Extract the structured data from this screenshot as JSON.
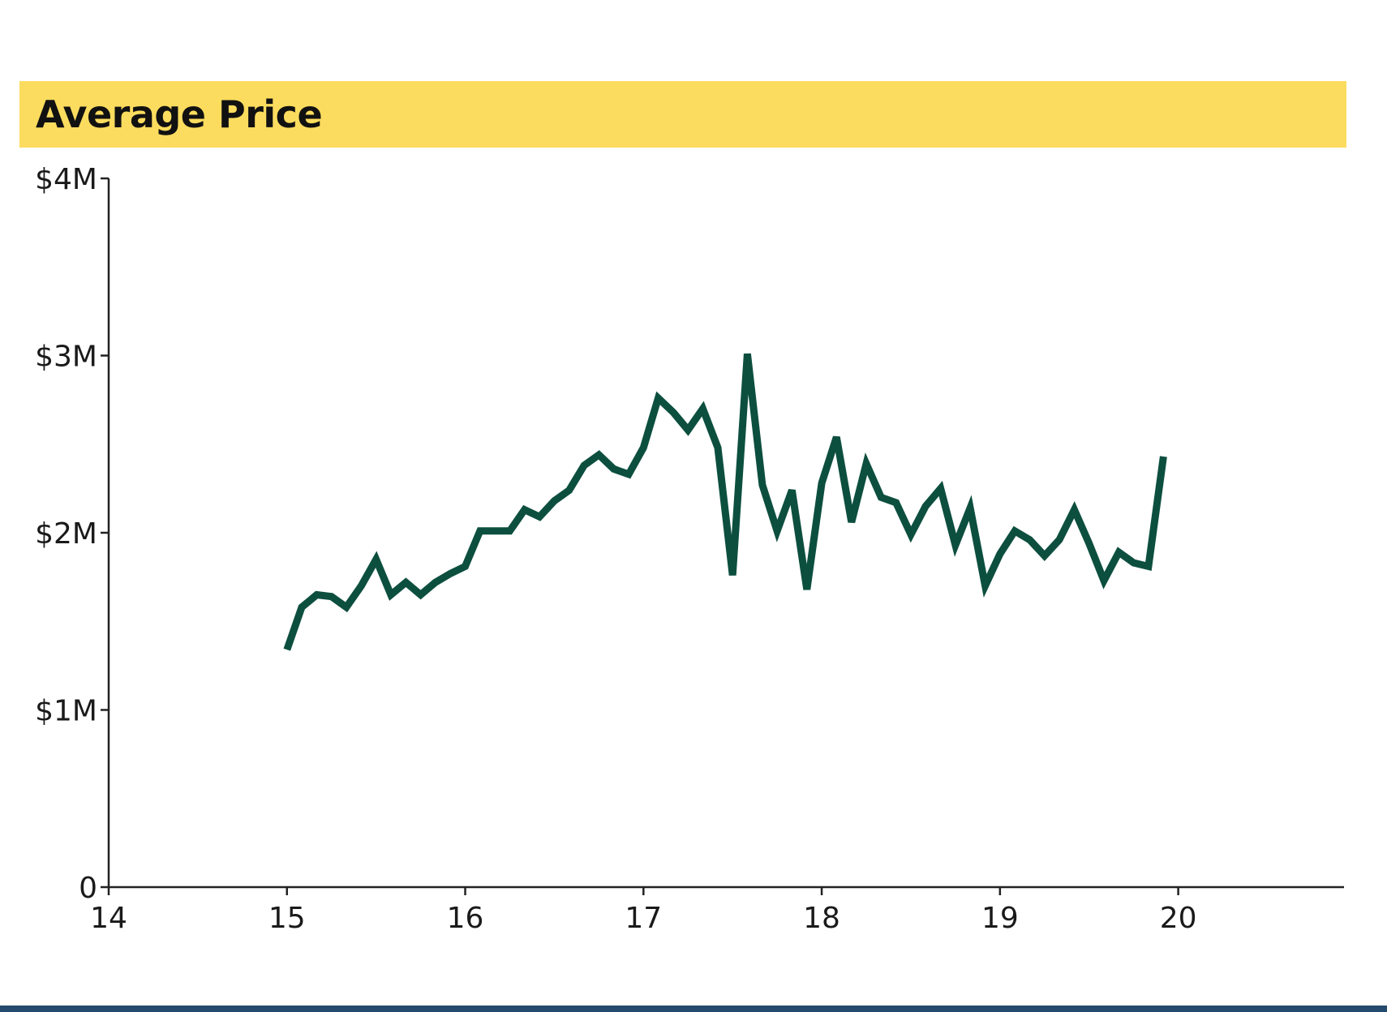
{
  "chart_data": {
    "type": "line",
    "title": "Average Price",
    "xlabel": "",
    "ylabel": "",
    "xlim": [
      14,
      20.93
    ],
    "ylim": [
      0,
      4000000
    ],
    "x_ticks": [
      14,
      15,
      16,
      17,
      18,
      19,
      20
    ],
    "x_tick_labels": [
      "14",
      "15",
      "16",
      "17",
      "18",
      "19",
      "20"
    ],
    "y_ticks": [
      0,
      1000000,
      2000000,
      3000000,
      4000000
    ],
    "y_tick_labels": [
      "0",
      "$1M",
      "$2M",
      "$3M",
      "$4M"
    ],
    "grid": false,
    "legend": "none",
    "series": [
      {
        "name": "Average Price",
        "color": "#0d4f3f",
        "x": [
          15.0,
          15.083,
          15.167,
          15.25,
          15.333,
          15.417,
          15.5,
          15.583,
          15.667,
          15.75,
          15.833,
          15.917,
          16.0,
          16.083,
          16.167,
          16.25,
          16.333,
          16.417,
          16.5,
          16.583,
          16.667,
          16.75,
          16.833,
          16.917,
          17.0,
          17.083,
          17.167,
          17.25,
          17.333,
          17.417,
          17.5,
          17.583,
          17.667,
          17.75,
          17.833,
          17.917,
          18.0,
          18.083,
          18.167,
          18.25,
          18.333,
          18.417,
          18.5,
          18.583,
          18.667,
          18.75,
          18.833,
          18.917,
          19.0,
          19.083,
          19.167,
          19.25,
          19.333,
          19.417,
          19.5,
          19.583,
          19.667,
          19.75,
          19.833,
          19.917
        ],
        "values": [
          1340000,
          1580000,
          1650000,
          1640000,
          1580000,
          1700000,
          1850000,
          1650000,
          1720000,
          1650000,
          1720000,
          1770000,
          1810000,
          2010000,
          2010000,
          2010000,
          2130000,
          2090000,
          2180000,
          2240000,
          2380000,
          2440000,
          2360000,
          2330000,
          2480000,
          2760000,
          2680000,
          2580000,
          2700000,
          2480000,
          1760000,
          3010000,
          2270000,
          2010000,
          2240000,
          1680000,
          2280000,
          2540000,
          2060000,
          2390000,
          2200000,
          2170000,
          1990000,
          2150000,
          2250000,
          1930000,
          2140000,
          1700000,
          1880000,
          2010000,
          1960000,
          1870000,
          1960000,
          2130000,
          1940000,
          1730000,
          1890000,
          1830000,
          1810000,
          2430000
        ]
      }
    ]
  }
}
